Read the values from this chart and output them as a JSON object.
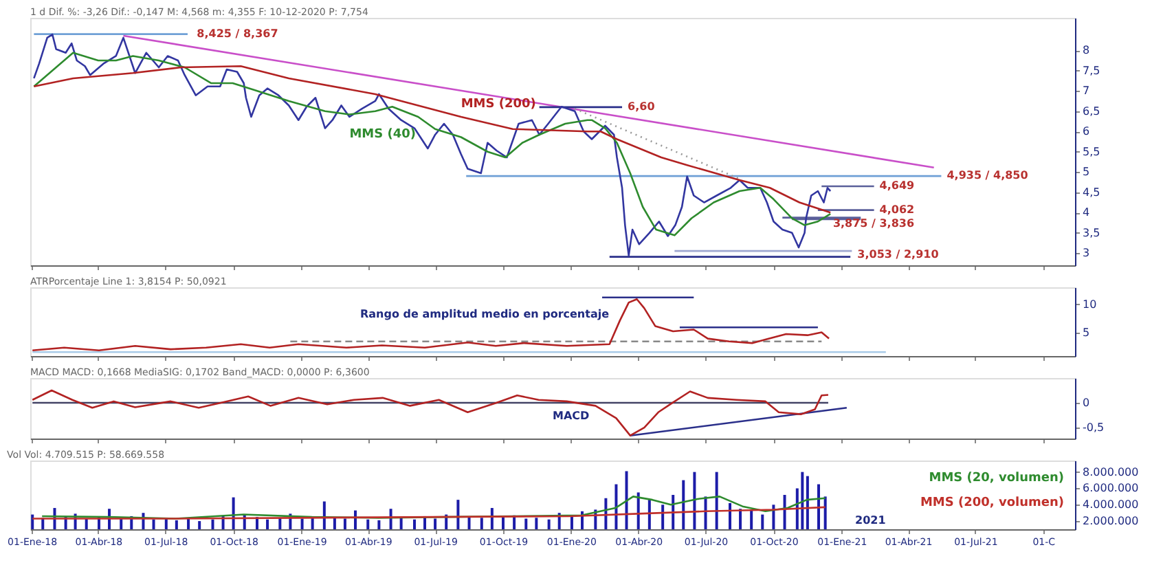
{
  "chart_data": [
    {
      "type": "line",
      "title": "1 d  Dif. %: -3,26  Dif.: -0,147  M: 4,568  m: 4,355  F: 10-12-2020  P: 7,754",
      "xlim": [
        "2017-12-30",
        "2021-11-13"
      ],
      "xticks": [
        {
          "value": "2018-01-01",
          "label": null
        },
        {
          "value": "2018-04-01",
          "label": null
        },
        {
          "value": "2018-07-01",
          "label": null
        },
        {
          "value": "2018-10-01",
          "label": null
        },
        {
          "value": "2019-01-01",
          "label": null
        },
        {
          "value": "2019-04-01",
          "label": null
        },
        {
          "value": "2019-07-01",
          "label": null
        },
        {
          "value": "2019-10-01",
          "label": null
        },
        {
          "value": "2020-01-01",
          "label": null
        },
        {
          "value": "2020-04-01",
          "label": null
        },
        {
          "value": "2020-07-01",
          "label": null
        },
        {
          "value": "2020-10-01",
          "label": null
        },
        {
          "value": "2021-01-01",
          "label": null
        },
        {
          "value": "2021-04-01",
          "label": null
        },
        {
          "value": "2021-07-01",
          "label": null
        },
        {
          "value": "2021-10-01",
          "label": null
        }
      ],
      "ylim": [
        2.7,
        8.8
      ],
      "yticks": [
        3,
        {
          "value": 3.5,
          "label": "3,5"
        },
        4,
        {
          "value": 4.5,
          "label": "4,5"
        },
        5,
        {
          "value": 5.5,
          "label": "5,5"
        },
        6,
        {
          "value": 6.5,
          "label": "6,5"
        },
        7,
        {
          "value": 7.5,
          "label": "7,5"
        },
        8
      ],
      "tick_labels": "y",
      "series": [
        {
          "color": "#6fa0d6",
          "x": [
            "2018-01-04",
            "2018-07-31"
          ],
          "values": [
            8.4,
            8.4
          ]
        },
        {
          "color": "#6fa0d6",
          "x": [
            "2019-08-12",
            "2021-05-16"
          ],
          "values": [
            4.9,
            4.9
          ]
        },
        {
          "color": "#c94fc9",
          "x": [
            "2018-05-05",
            "2021-05-06"
          ],
          "values": [
            8.36,
            5.11
          ]
        },
        {
          "color": "#999999",
          "line_style": "dotted",
          "x": [
            "2020-01-06",
            "2020-08-16"
          ],
          "values": [
            6.56,
            4.83
          ]
        },
        {
          "color": "#2a2f8a",
          "x": [
            "2019-11-19",
            "2020-03-10"
          ],
          "values": [
            6.6,
            6.6
          ]
        },
        {
          "color": "#2a2f8a",
          "x": [
            "2020-02-22",
            "2021-01-13"
          ],
          "values": [
            2.91,
            2.91
          ]
        },
        {
          "color": "#a0a8d0",
          "x": [
            "2020-05-20",
            "2021-01-15"
          ],
          "values": [
            3.053,
            3.053
          ]
        },
        {
          "color": "#5a5f9a",
          "x": [
            "2020-12-05",
            "2021-02-14"
          ],
          "values": [
            4.649,
            4.649
          ]
        },
        {
          "color": "#5a5f9a",
          "x": [
            "2020-11-30",
            "2021-02-14"
          ],
          "values": [
            4.062,
            4.062
          ]
        },
        {
          "color": "#5a5f9a",
          "x": [
            "2020-10-13",
            "2021-01-27"
          ],
          "values": [
            3.875,
            3.875
          ]
        },
        {
          "color": "#5a5f9a",
          "x": [
            "2020-10-26",
            "2021-01-27"
          ],
          "values": [
            3.836,
            3.836
          ]
        },
        {
          "color": "#3236a0",
          "x": [
            "2018-01-04",
            "2018-01-11",
            "2018-01-22",
            "2018-01-29",
            "2018-02-03",
            "2018-02-16",
            "2018-02-24",
            "2018-03-03",
            "2018-03-14",
            "2018-03-21",
            "2018-04-08",
            "2018-04-25",
            "2018-05-05",
            "2018-05-21",
            "2018-06-05",
            "2018-06-22",
            "2018-07-04",
            "2018-07-18",
            "2018-07-27",
            "2018-08-11",
            "2018-08-27",
            "2018-09-13",
            "2018-09-22",
            "2018-10-06",
            "2018-10-15",
            "2018-10-18",
            "2018-10-25",
            "2018-11-05",
            "2018-11-16",
            "2018-12-01",
            "2018-12-15",
            "2018-12-28",
            "2019-01-08",
            "2019-01-20",
            "2019-02-02",
            "2019-02-12",
            "2019-02-24",
            "2019-03-07",
            "2019-03-24",
            "2019-04-11",
            "2019-04-16",
            "2019-04-29",
            "2019-05-16",
            "2019-06-03",
            "2019-06-21",
            "2019-07-01",
            "2019-07-13",
            "2019-07-25",
            "2019-08-05",
            "2019-08-14",
            "2019-09-01",
            "2019-09-10",
            "2019-09-22",
            "2019-10-06",
            "2019-10-22",
            "2019-11-09",
            "2019-11-19",
            "2019-12-01",
            "2019-12-19",
            "2020-01-06",
            "2020-01-18",
            "2020-01-29",
            "2020-02-16",
            "2020-02-28",
            "2020-03-03",
            "2020-03-10",
            "2020-03-14",
            "2020-03-19",
            "2020-03-24",
            "2020-04-02",
            "2020-04-16",
            "2020-04-29",
            "2020-05-11",
            "2020-05-21",
            "2020-05-30",
            "2020-06-06",
            "2020-06-15",
            "2020-06-29",
            "2020-07-16",
            "2020-08-04",
            "2020-08-16",
            "2020-08-27",
            "2020-09-13",
            "2020-09-22",
            "2020-10-01",
            "2020-10-13",
            "2020-10-26",
            "2020-11-04",
            "2020-11-12",
            "2020-11-14",
            "2020-11-21",
            "2020-11-30",
            "2020-12-08",
            "2020-12-13",
            "2020-12-17"
          ],
          "values": [
            7.31,
            7.67,
            8.31,
            8.39,
            8.03,
            7.94,
            8.17,
            7.75,
            7.61,
            7.39,
            7.67,
            7.86,
            8.31,
            7.44,
            7.94,
            7.58,
            7.86,
            7.75,
            7.39,
            6.89,
            7.11,
            7.11,
            7.53,
            7.47,
            7.19,
            6.83,
            6.36,
            6.89,
            7.06,
            6.89,
            6.64,
            6.28,
            6.61,
            6.83,
            6.08,
            6.28,
            6.64,
            6.36,
            6.56,
            6.75,
            6.92,
            6.56,
            6.28,
            6.08,
            5.58,
            5.92,
            6.19,
            5.92,
            5.44,
            5.08,
            4.97,
            5.72,
            5.53,
            5.36,
            6.19,
            6.28,
            5.92,
            6.19,
            6.61,
            6.5,
            6.0,
            5.81,
            6.14,
            5.92,
            5.36,
            4.61,
            3.69,
            2.94,
            3.58,
            3.22,
            3.5,
            3.78,
            3.42,
            3.69,
            4.14,
            4.89,
            4.42,
            4.25,
            4.42,
            4.61,
            4.8,
            4.61,
            4.61,
            4.25,
            3.78,
            3.58,
            3.5,
            3.14,
            3.5,
            3.86,
            4.42,
            4.53,
            4.25,
            4.61,
            4.53
          ]
        },
        {
          "name": "MMS (40)",
          "color": "#2e8b2e",
          "x": [
            "2018-01-04",
            "2018-02-03",
            "2018-02-26",
            "2018-04-01",
            "2018-04-25",
            "2018-05-18",
            "2018-06-22",
            "2018-07-27",
            "2018-09-01",
            "2018-09-30",
            "2018-10-28",
            "2018-12-15",
            "2019-02-02",
            "2019-03-07",
            "2019-04-11",
            "2019-05-04",
            "2019-06-08",
            "2019-07-01",
            "2019-08-05",
            "2019-09-10",
            "2019-10-04",
            "2019-10-27",
            "2019-11-19",
            "2019-12-24",
            "2020-01-23",
            "2020-01-29",
            "2020-02-16",
            "2020-03-03",
            "2020-03-21",
            "2020-04-07",
            "2020-04-25",
            "2020-05-20",
            "2020-06-12",
            "2020-07-12",
            "2020-08-16",
            "2020-09-13",
            "2020-10-01",
            "2020-10-26",
            "2020-11-12",
            "2020-11-30",
            "2020-12-17"
          ],
          "values": [
            7.11,
            7.58,
            7.94,
            7.75,
            7.75,
            7.86,
            7.75,
            7.58,
            7.19,
            7.19,
            7.03,
            6.75,
            6.5,
            6.42,
            6.5,
            6.61,
            6.36,
            6.06,
            5.86,
            5.5,
            5.36,
            5.72,
            5.92,
            6.19,
            6.28,
            6.28,
            6.08,
            5.72,
            4.97,
            4.14,
            3.58,
            3.44,
            3.86,
            4.25,
            4.53,
            4.61,
            4.33,
            3.86,
            3.69,
            3.78,
            3.97
          ]
        },
        {
          "name": "MMS (200)",
          "color": "#b22222",
          "x": [
            "2018-01-04",
            "2018-02-26",
            "2018-05-18",
            "2018-07-22",
            "2018-10-11",
            "2018-12-15",
            "2019-04-11",
            "2019-08-05",
            "2019-10-14",
            "2020-01-23",
            "2020-02-10",
            "2020-03-03",
            "2020-05-02",
            "2020-06-06",
            "2020-08-16",
            "2020-09-26",
            "2020-11-05",
            "2020-12-17"
          ],
          "values": [
            7.11,
            7.31,
            7.44,
            7.58,
            7.61,
            7.31,
            6.92,
            6.36,
            6.06,
            6.0,
            6.0,
            5.81,
            5.36,
            5.17,
            4.8,
            4.61,
            4.25,
            4.0
          ]
        }
      ],
      "annotations": [
        {
          "text": "8,425 / 8,367",
          "x": "2018-08-05",
          "y": 8.4
        },
        {
          "text": "6,60",
          "x": "2020-03-10",
          "y": 6.6
        },
        {
          "text": "4,935 / 4,850",
          "x": "2021-05-16",
          "y": 4.9
        },
        {
          "text": "4,649",
          "x": "2021-02-14",
          "y": 4.649
        },
        {
          "text": "4,062",
          "x": "2021-02-14",
          "y": 4.062
        },
        {
          "text": "3,875 / 3,836",
          "x": "2020-12-13",
          "y": 3.72
        },
        {
          "text": "3,053 / 2,910",
          "x": "2021-01-15",
          "y": 2.95
        }
      ]
    },
    {
      "type": "line",
      "title": "ATRPorcentaje  Line 1: 3,8154  P: 50,0921",
      "xlim": [
        "2017-12-30",
        "2021-11-13"
      ],
      "xticks": [
        {
          "value": "2018-01-01",
          "label": null
        },
        {
          "value": "2018-04-01",
          "label": null
        },
        {
          "value": "2018-07-01",
          "label": null
        },
        {
          "value": "2018-10-01",
          "label": null
        },
        {
          "value": "2019-01-01",
          "label": null
        },
        {
          "value": "2019-04-01",
          "label": null
        },
        {
          "value": "2019-07-01",
          "label": null
        },
        {
          "value": "2019-10-01",
          "label": null
        },
        {
          "value": "2020-01-01",
          "label": null
        },
        {
          "value": "2020-04-01",
          "label": null
        },
        {
          "value": "2020-07-01",
          "label": null
        },
        {
          "value": "2020-10-01",
          "label": null
        },
        {
          "value": "2021-01-01",
          "label": null
        },
        {
          "value": "2021-04-01",
          "label": null
        },
        {
          "value": "2021-07-01",
          "label": null
        },
        {
          "value": "2021-10-01",
          "label": null
        }
      ],
      "ylim": [
        0.8,
        13
      ],
      "yticks": [
        5,
        10
      ],
      "tick_labels": "y",
      "series": [
        {
          "color": "#a9cbe8",
          "x": [
            "2018-01-02",
            "2021-03-02"
          ],
          "values": [
            1.5,
            1.5
          ]
        },
        {
          "color": "#888888",
          "line_style": "dashed",
          "x": [
            "2018-12-17",
            "2020-12-05"
          ],
          "values": [
            3.4,
            3.4
          ]
        },
        {
          "color": "#2a2f8a",
          "x": [
            "2020-02-12",
            "2020-06-15"
          ],
          "values": [
            11.2,
            11.2
          ]
        },
        {
          "color": "#2a2f8a",
          "x": [
            "2020-05-27",
            "2020-11-30"
          ],
          "values": [
            5.9,
            5.9
          ]
        },
        {
          "color": "#b22222",
          "x": [
            "2018-01-02",
            "2018-02-14",
            "2018-04-02",
            "2018-05-21",
            "2018-07-08",
            "2018-08-25",
            "2018-10-11",
            "2018-11-19",
            "2018-12-28",
            "2019-03-03",
            "2019-04-20",
            "2019-06-17",
            "2019-08-14",
            "2019-09-21",
            "2019-10-29",
            "2019-12-26",
            "2020-02-22",
            "2020-03-07",
            "2020-03-19",
            "2020-03-30",
            "2020-04-09",
            "2020-04-24",
            "2020-05-18",
            "2020-06-15",
            "2020-07-04",
            "2020-08-02",
            "2020-09-02",
            "2020-09-19",
            "2020-10-18",
            "2020-11-16",
            "2020-12-05",
            "2020-12-15"
          ],
          "values": [
            1.8,
            2.3,
            1.8,
            2.6,
            2.0,
            2.3,
            2.9,
            2.3,
            2.9,
            2.3,
            2.7,
            2.3,
            3.2,
            2.6,
            3.1,
            2.6,
            2.9,
            7.1,
            10.3,
            10.9,
            9.3,
            6.1,
            5.2,
            5.5,
            3.9,
            3.4,
            3.1,
            3.7,
            4.7,
            4.5,
            5.0,
            3.9
          ]
        }
      ],
      "annotations": [
        "Rango de amplitud medio en porcentaje"
      ]
    },
    {
      "type": "line",
      "title": "MACD  MACD: 0,1668  MediaSIG: 0,1702  Band_MACD: 0,0000  P: 6,3600",
      "xlim": [
        "2017-12-30",
        "2021-11-13"
      ],
      "xticks": [
        {
          "value": "2018-01-01",
          "label": null
        },
        {
          "value": "2018-04-01",
          "label": null
        },
        {
          "value": "2018-07-01",
          "label": null
        },
        {
          "value": "2018-10-01",
          "label": null
        },
        {
          "value": "2019-01-01",
          "label": null
        },
        {
          "value": "2019-04-01",
          "label": null
        },
        {
          "value": "2019-07-01",
          "label": null
        },
        {
          "value": "2019-10-01",
          "label": null
        },
        {
          "value": "2020-01-01",
          "label": null
        },
        {
          "value": "2020-04-01",
          "label": null
        },
        {
          "value": "2020-07-01",
          "label": null
        },
        {
          "value": "2020-10-01",
          "label": null
        },
        {
          "value": "2021-01-01",
          "label": null
        },
        {
          "value": "2021-04-01",
          "label": null
        },
        {
          "value": "2021-07-01",
          "label": null
        },
        {
          "value": "2021-10-01",
          "label": null
        }
      ],
      "ylim": [
        -0.72,
        0.5
      ],
      "yticks": [
        {
          "value": -0.5,
          "label": "-0,5"
        },
        0
      ],
      "tick_labels": "y",
      "series": [
        {
          "color": "#444466",
          "x": [
            "2018-01-02",
            "2020-12-14"
          ],
          "values": [
            0,
            0
          ]
        },
        {
          "color": "#2a2f8a",
          "x": [
            "2020-03-21",
            "2021-01-08"
          ],
          "values": [
            -0.66,
            -0.1
          ]
        },
        {
          "color": "#b22222",
          "x": [
            "2018-01-02",
            "2018-01-28",
            "2018-02-25",
            "2018-03-24",
            "2018-04-22",
            "2018-05-21",
            "2018-07-08",
            "2018-08-15",
            "2018-09-14",
            "2018-10-21",
            "2018-11-20",
            "2018-12-28",
            "2019-02-05",
            "2019-03-13",
            "2019-04-21",
            "2019-05-28",
            "2019-07-06",
            "2019-08-14",
            "2019-09-22",
            "2019-10-20",
            "2019-11-18",
            "2019-12-26",
            "2020-02-03",
            "2020-03-02",
            "2020-03-21",
            "2020-04-09",
            "2020-04-28",
            "2020-05-17",
            "2020-06-10",
            "2020-07-04",
            "2020-08-12",
            "2020-09-20",
            "2020-10-08",
            "2020-11-07",
            "2020-11-26",
            "2020-12-05",
            "2020-12-14"
          ],
          "values": [
            0.06,
            0.25,
            0.06,
            -0.1,
            0.03,
            -0.09,
            0.03,
            -0.1,
            0,
            0.13,
            -0.06,
            0.1,
            -0.03,
            0.06,
            0.1,
            -0.06,
            0.06,
            -0.19,
            0,
            0.15,
            0.06,
            0.03,
            -0.06,
            -0.31,
            -0.66,
            -0.5,
            -0.19,
            0,
            0.23,
            0.1,
            0.06,
            0.03,
            -0.19,
            -0.23,
            -0.13,
            0.15,
            0.16
          ]
        }
      ],
      "annotations": [
        "MACD"
      ]
    },
    {
      "type": "bar",
      "title": "Vol  Vol: 4.709.515  P: 58.669.558",
      "xlim": [
        "2017-12-30",
        "2021-11-13"
      ],
      "xticks": [
        {
          "value": "2018-01-01",
          "label": "01-Ene-18"
        },
        {
          "value": "2018-04-01",
          "label": "01-Abr-18"
        },
        {
          "value": "2018-07-01",
          "label": "01-Jul-18"
        },
        {
          "value": "2018-10-01",
          "label": "01-Oct-18"
        },
        {
          "value": "2019-01-01",
          "label": "01-Ene-19"
        },
        {
          "value": "2019-04-01",
          "label": "01-Abr-19"
        },
        {
          "value": "2019-07-01",
          "label": "01-Jul-19"
        },
        {
          "value": "2019-10-01",
          "label": "01-Oct-19"
        },
        {
          "value": "2020-01-01",
          "label": "01-Ene-20"
        },
        {
          "value": "2020-04-01",
          "label": "01-Abr-20"
        },
        {
          "value": "2020-07-01",
          "label": "01-Jul-20"
        },
        {
          "value": "2020-10-01",
          "label": "01-Oct-20"
        },
        {
          "value": "2021-01-01",
          "label": "01-Ene-21"
        },
        {
          "value": "2021-04-01",
          "label": "01-Abr-21"
        },
        {
          "value": "2021-07-01",
          "label": "01-Jul-21"
        },
        {
          "value": "2021-10-01",
          "label": "01-C"
        }
      ],
      "ylim": [
        1000000,
        9400000
      ],
      "yticks": [
        {
          "value": 2000000,
          "label": "2.000.000"
        },
        {
          "value": 4000000,
          "label": "4.000.000"
        },
        {
          "value": 6000000,
          "label": "6.000.000"
        },
        {
          "value": 8000000,
          "label": "8.000.000"
        }
      ],
      "legend": "right",
      "series": [
        {
          "color": "#1c1ca8",
          "x": [
            "2018-01-02",
            "2018-01-16",
            "2018-02-01",
            "2018-02-16",
            "2018-03-01",
            "2018-03-16",
            "2018-04-02",
            "2018-04-16",
            "2018-05-02",
            "2018-05-16",
            "2018-06-01",
            "2018-06-15",
            "2018-07-02",
            "2018-07-16",
            "2018-08-01",
            "2018-08-16",
            "2018-09-03",
            "2018-09-17",
            "2018-10-01",
            "2018-10-16",
            "2018-11-02",
            "2018-11-16",
            "2018-12-03",
            "2018-12-17",
            "2019-01-02",
            "2019-01-16",
            "2019-02-01",
            "2019-02-15",
            "2019-03-01",
            "2019-03-15",
            "2019-04-01",
            "2019-04-16",
            "2019-05-02",
            "2019-05-16",
            "2019-06-03",
            "2019-06-17",
            "2019-07-01",
            "2019-07-16",
            "2019-08-01",
            "2019-08-16",
            "2019-09-02",
            "2019-09-16",
            "2019-10-01",
            "2019-10-16",
            "2019-11-01",
            "2019-11-15",
            "2019-12-02",
            "2019-12-16",
            "2020-01-02",
            "2020-01-16",
            "2020-02-03",
            "2020-02-17",
            "2020-03-02",
            "2020-03-16",
            "2020-04-01",
            "2020-04-16",
            "2020-05-04",
            "2020-05-18",
            "2020-06-01",
            "2020-06-16",
            "2020-07-01",
            "2020-07-16",
            "2020-08-03",
            "2020-08-17",
            "2020-09-01",
            "2020-09-16",
            "2020-10-01",
            "2020-10-16",
            "2020-11-02",
            "2020-11-09",
            "2020-11-16",
            "2020-12-01",
            "2020-12-10"
          ],
          "values": [
            2800000,
            2400000,
            3600000,
            2600000,
            2900000,
            2300000,
            2500000,
            3500000,
            2400000,
            2600000,
            3000000,
            2200000,
            2300000,
            2100000,
            2400000,
            2000000,
            2200000,
            2600000,
            4900000,
            2800000,
            2500000,
            2200000,
            2400000,
            2900000,
            2300000,
            2600000,
            4400000,
            2500000,
            2300000,
            3300000,
            2200000,
            2100000,
            3500000,
            2400000,
            2200000,
            2600000,
            2300000,
            2800000,
            4600000,
            2500000,
            2400000,
            3600000,
            2500000,
            2700000,
            2300000,
            2400000,
            2200000,
            3000000,
            2600000,
            3200000,
            3400000,
            4800000,
            6500000,
            8100000,
            5500000,
            4600000,
            4000000,
            5200000,
            7000000,
            8000000,
            5000000,
            8000000,
            4200000,
            3500000,
            3300000,
            2800000,
            4000000,
            5200000,
            6000000,
            8000000,
            7500000,
            6500000,
            5000000
          ]
        },
        {
          "type": "line",
          "name": "MMS (20, volumen)",
          "color": "#2e8b2e",
          "x": [
            "2018-01-15",
            "2018-04-15",
            "2018-07-15",
            "2018-10-15",
            "2019-01-15",
            "2019-04-15",
            "2019-07-15",
            "2019-10-15",
            "2020-01-15",
            "2020-03-01",
            "2020-03-25",
            "2020-04-20",
            "2020-05-15",
            "2020-06-20",
            "2020-07-20",
            "2020-08-20",
            "2020-09-20",
            "2020-10-20",
            "2020-11-15",
            "2020-12-10"
          ],
          "values": [
            2600000,
            2500000,
            2300000,
            2800000,
            2500000,
            2400000,
            2500000,
            2600000,
            2700000,
            3600000,
            5000000,
            4600000,
            4000000,
            4700000,
            5000000,
            3800000,
            3200000,
            3600000,
            4600000,
            4800000
          ]
        },
        {
          "type": "line",
          "name": "MMS (200, volumen)",
          "color": "#c0302a",
          "x": [
            "2018-01-02",
            "2018-07-01",
            "2019-01-01",
            "2019-07-01",
            "2020-01-01",
            "2020-04-01",
            "2020-07-01",
            "2020-10-01",
            "2020-12-10"
          ],
          "values": [
            2300000,
            2300000,
            2400000,
            2500000,
            2600000,
            2900000,
            3200000,
            3400000,
            3700000
          ]
        }
      ],
      "annotations": [
        "2021"
      ]
    }
  ]
}
